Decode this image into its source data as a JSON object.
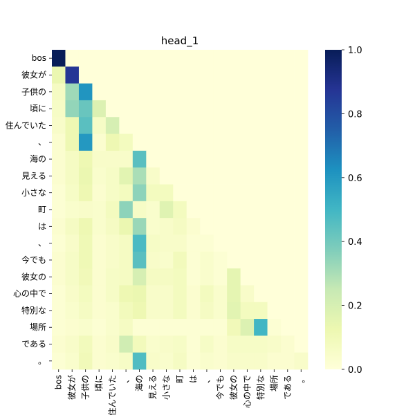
{
  "chart_data": {
    "type": "heatmap",
    "title": "head_1",
    "xlabel": "",
    "ylabel": "",
    "colormap": "YlGnBu",
    "vmin": 0.0,
    "vmax": 1.0,
    "tokens": [
      "bos",
      "彼女が",
      "子供の",
      "頃に",
      "住んでいた",
      "、",
      "海の",
      "見える",
      "小さな",
      "町",
      "は",
      "、",
      "今でも",
      "彼女の",
      "心の中で",
      "特別な",
      "場所",
      "である",
      "。"
    ],
    "colorbar_ticks": [
      {
        "value": 0.0,
        "label": "0.0"
      },
      {
        "value": 0.2,
        "label": "0.2"
      },
      {
        "value": 0.4,
        "label": "0.4"
      },
      {
        "value": 0.6,
        "label": "0.6"
      },
      {
        "value": 0.8,
        "label": "0.8"
      },
      {
        "value": 1.0,
        "label": "1.0"
      }
    ],
    "matrix": [
      [
        1.0
      ],
      [
        0.13,
        0.87
      ],
      [
        0.07,
        0.32,
        0.61
      ],
      [
        0.06,
        0.34,
        0.42,
        0.18
      ],
      [
        0.05,
        0.12,
        0.45,
        0.06,
        0.2
      ],
      [
        0.03,
        0.12,
        0.6,
        0.03,
        0.12,
        0.08
      ],
      [
        0.03,
        0.07,
        0.12,
        0.05,
        0.05,
        0.05,
        0.45
      ],
      [
        0.03,
        0.07,
        0.13,
        0.04,
        0.06,
        0.16,
        0.3,
        0.05
      ],
      [
        0.02,
        0.06,
        0.12,
        0.03,
        0.06,
        0.08,
        0.35,
        0.08,
        0.08
      ],
      [
        0.02,
        0.04,
        0.05,
        0.04,
        0.08,
        0.35,
        0.06,
        0.04,
        0.17,
        0.08
      ],
      [
        0.03,
        0.07,
        0.12,
        0.04,
        0.07,
        0.13,
        0.33,
        0.04,
        0.05,
        0.07,
        0.03
      ],
      [
        0.02,
        0.05,
        0.11,
        0.03,
        0.05,
        0.07,
        0.48,
        0.06,
        0.05,
        0.05,
        0.02,
        0.02
      ],
      [
        0.03,
        0.06,
        0.11,
        0.03,
        0.05,
        0.07,
        0.45,
        0.05,
        0.04,
        0.09,
        0.02,
        0.04,
        0.02
      ],
      [
        0.03,
        0.06,
        0.1,
        0.03,
        0.06,
        0.07,
        0.2,
        0.07,
        0.07,
        0.08,
        0.02,
        0.04,
        0.02,
        0.15
      ],
      [
        0.02,
        0.05,
        0.08,
        0.03,
        0.06,
        0.12,
        0.13,
        0.05,
        0.05,
        0.08,
        0.03,
        0.08,
        0.04,
        0.15,
        0.05
      ],
      [
        0.02,
        0.04,
        0.07,
        0.03,
        0.04,
        0.09,
        0.12,
        0.05,
        0.05,
        0.08,
        0.03,
        0.07,
        0.04,
        0.16,
        0.08,
        0.08
      ],
      [
        0.02,
        0.03,
        0.04,
        0.02,
        0.04,
        0.07,
        0.02,
        0.02,
        0.02,
        0.02,
        0.02,
        0.02,
        0.02,
        0.1,
        0.18,
        0.5,
        0.02
      ],
      [
        0.03,
        0.05,
        0.09,
        0.03,
        0.05,
        0.22,
        0.09,
        0.04,
        0.05,
        0.06,
        0.02,
        0.06,
        0.03,
        0.06,
        0.06,
        0.06,
        0.05,
        0.03
      ],
      [
        0.02,
        0.04,
        0.1,
        0.03,
        0.04,
        0.06,
        0.47,
        0.05,
        0.04,
        0.07,
        0.02,
        0.04,
        0.03,
        0.05,
        0.05,
        0.05,
        0.03,
        0.03,
        0.05
      ]
    ]
  }
}
